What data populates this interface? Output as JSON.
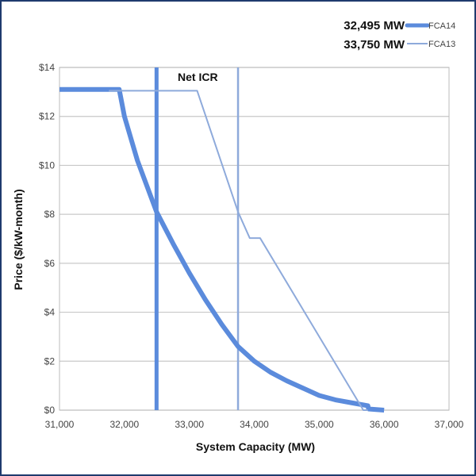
{
  "chart_data": {
    "type": "line",
    "title": "",
    "xlabel": "System Capacity (MW)",
    "ylabel": "Price ($/kW-month)",
    "xlim": [
      31000,
      37000
    ],
    "ylim": [
      0,
      14
    ],
    "xticks": [
      31000,
      32000,
      33000,
      34000,
      35000,
      36000,
      37000
    ],
    "xtick_labels": [
      "31,000",
      "32,000",
      "33,000",
      "34,000",
      "35,000",
      "36,000",
      "37,000"
    ],
    "yticks": [
      0,
      2,
      4,
      6,
      8,
      10,
      12,
      14
    ],
    "ytick_labels": [
      "$0",
      "$2",
      "$4",
      "$6",
      "$8",
      "$10",
      "$12",
      "$14"
    ],
    "grid": "horizontal",
    "legend_position": "top-right",
    "annotation": "Net ICR",
    "series": [
      {
        "name": "FCA14",
        "legend_value": "32,495 MW",
        "color": "#5b8bdc",
        "net_icr": 32495,
        "x": [
          31000,
          31920,
          32000,
          32200,
          32495,
          32750,
          33000,
          33250,
          33500,
          33750,
          34000,
          34250,
          34500,
          34750,
          35000,
          35250,
          35500,
          35750,
          35760,
          36000
        ],
        "y": [
          13.1,
          13.1,
          12.0,
          10.2,
          8.1,
          6.8,
          5.6,
          4.5,
          3.5,
          2.6,
          2.0,
          1.55,
          1.2,
          0.9,
          0.6,
          0.42,
          0.3,
          0.18,
          0.05,
          0.0
        ]
      },
      {
        "name": "FCA13",
        "legend_value": "33,750 MW",
        "color": "#8eaadb",
        "net_icr": 33750,
        "x": [
          31760,
          33120,
          33750,
          33930,
          34090,
          35680,
          35750
        ],
        "y": [
          13.05,
          13.05,
          8.1,
          7.03,
          7.03,
          0.0,
          0.0
        ]
      }
    ]
  }
}
